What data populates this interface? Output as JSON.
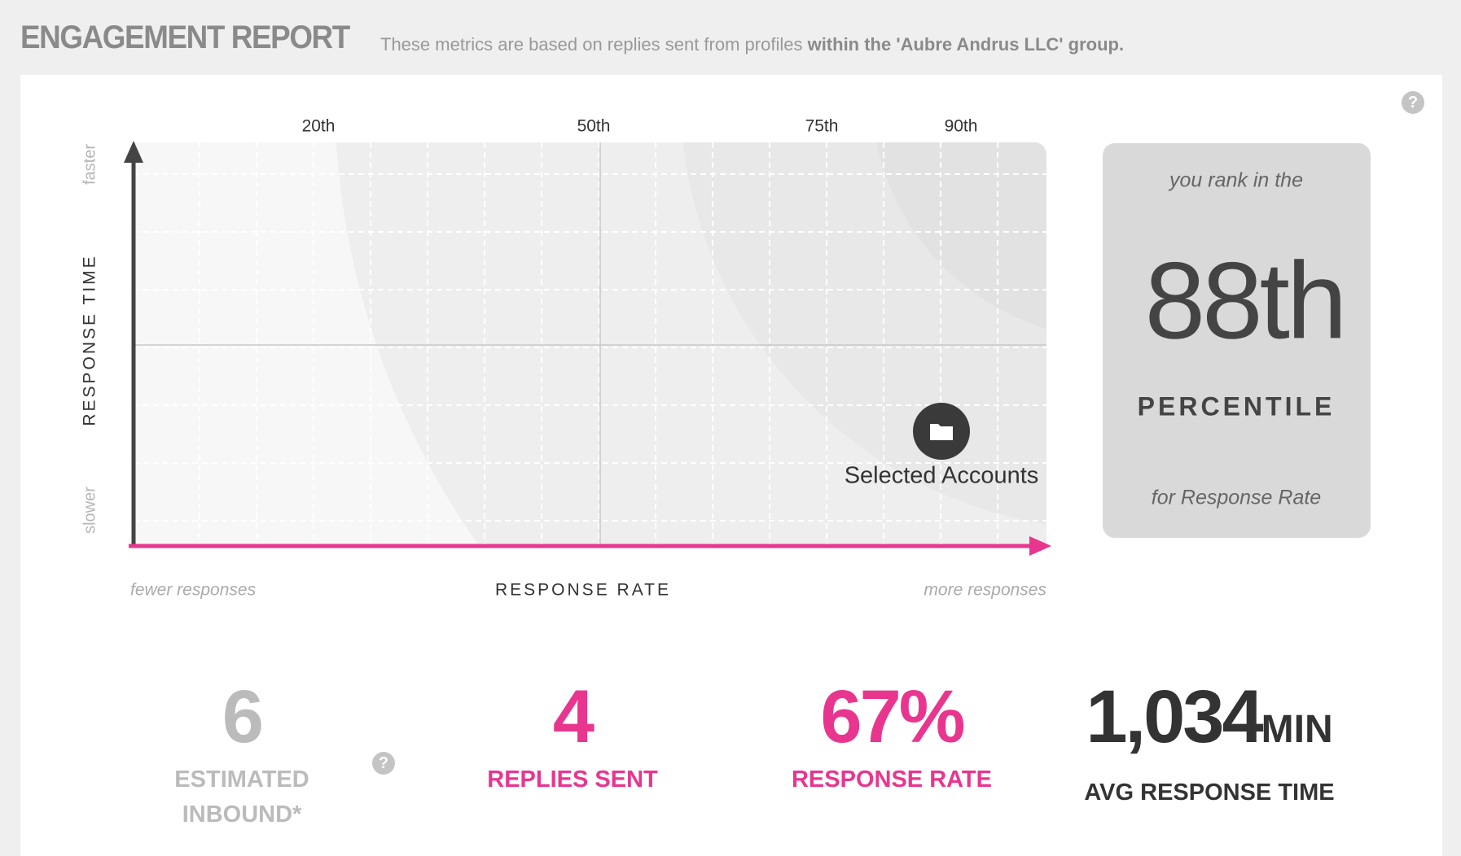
{
  "header": {
    "title": "ENGAGEMENT REPORT",
    "subtitle": "These metrics are based on replies sent from profiles",
    "subtitle_bold": "within the 'Aubre Andrus LLC' group."
  },
  "help_icon": "?",
  "plot": {
    "percentiles": [
      "20th",
      "50th",
      "75th",
      "90th"
    ],
    "y_axis": "RESPONSE TIME",
    "y_top": "faster",
    "y_bottom": "slower",
    "x_axis": "RESPONSE RATE",
    "x_left": "fewer responses",
    "x_right": "more responses",
    "marker_label": "Selected Accounts"
  },
  "rank": {
    "intro": "you rank in the",
    "value": "88th",
    "unit": "PERCENTILE",
    "metric": "for Response Rate"
  },
  "stats": [
    {
      "value": "6",
      "label": "ESTIMATED INBOUND*"
    },
    {
      "value": "4",
      "label": "REPLIES SENT"
    },
    {
      "value": "67%",
      "label": "RESPONSE RATE"
    },
    {
      "value": "1,034",
      "unit": "MIN",
      "label": "AVG RESPONSE TIME"
    }
  ]
}
